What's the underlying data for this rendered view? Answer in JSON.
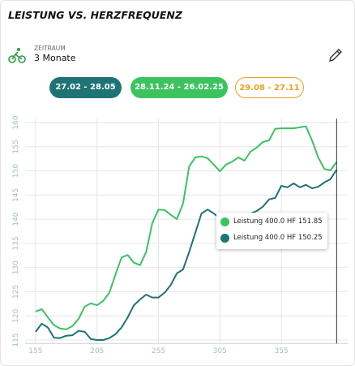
{
  "header": {
    "title": "LEISTUNG VS. HERZFREQUENZ",
    "period_label": "ZEITRAUM",
    "period_value": "3 Monate"
  },
  "filters": [
    {
      "label": "27.02 - 28.05",
      "color": "#1e7375"
    },
    {
      "label": "28.11.24 - 26.02.25",
      "color": "#3cc35f"
    },
    {
      "label": "29.08 - 27.11",
      "color": "#f0a020"
    }
  ],
  "tooltip": [
    "Leistung 400.0 HF 151.85",
    "Leistung 400.0 HF 150.25"
  ],
  "chart_data": {
    "type": "line",
    "x": [
      155,
      160,
      165,
      170,
      175,
      180,
      185,
      190,
      195,
      200,
      205,
      210,
      215,
      220,
      225,
      230,
      235,
      240,
      245,
      250,
      255,
      260,
      265,
      270,
      275,
      280,
      285,
      290,
      295,
      300,
      305,
      310,
      315,
      320,
      325,
      330,
      335,
      340,
      345,
      350,
      355,
      360,
      365,
      370,
      375,
      380,
      385,
      390,
      395,
      400
    ],
    "series": [
      {
        "color": "#3cc35f",
        "values": [
          120.9,
          121.4,
          119.7,
          118.1,
          117.4,
          117.2,
          117.9,
          119.4,
          121.9,
          122.6,
          122.2,
          123.1,
          124.8,
          128.5,
          132.1,
          132.6,
          131.0,
          130.5,
          133.2,
          139.2,
          142.0,
          141.9,
          140.9,
          140.0,
          143.2,
          150.9,
          152.8,
          153.0,
          152.6,
          151.3,
          149.9,
          151.3,
          151.9,
          152.8,
          152.1,
          154.0,
          154.8,
          156.0,
          156.3,
          158.7,
          158.8,
          158.8,
          158.8,
          159.0,
          159.2,
          156.3,
          152.8,
          150.4,
          150.1,
          151.85
        ]
      },
      {
        "color": "#1e7375",
        "values": [
          116.7,
          118.4,
          117.6,
          115.5,
          115.4,
          115.9,
          116.0,
          116.9,
          116.7,
          115.2,
          115.0,
          115.0,
          115.4,
          116.2,
          117.6,
          119.7,
          122.2,
          123.4,
          124.4,
          123.8,
          123.8,
          124.8,
          126.4,
          128.8,
          129.6,
          133.2,
          137.2,
          141.2,
          142.0,
          141.2,
          140.2,
          140.2,
          140.2,
          140.4,
          140.7,
          141.2,
          141.7,
          142.6,
          144.1,
          144.4,
          146.9,
          146.6,
          147.4,
          146.6,
          147.1,
          146.4,
          146.7,
          147.6,
          148.3,
          150.25
        ]
      }
    ],
    "cursor": 400,
    "xlim": [
      146.5,
      409
    ],
    "ylim": [
      114.3,
      160.8
    ],
    "xticks": [
      155,
      205,
      255,
      305,
      355
    ],
    "yticks": [
      115,
      120,
      125,
      130,
      135,
      140,
      145,
      150,
      155,
      160
    ],
    "grid": true
  }
}
